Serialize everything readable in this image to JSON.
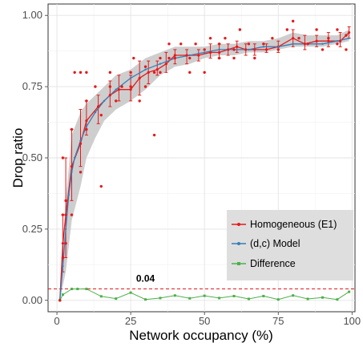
{
  "chart_data": {
    "type": "line",
    "xlabel": "Network occupancy (%)",
    "ylabel": "Drop ratio",
    "xlim": [
      -3,
      101
    ],
    "ylim": [
      -0.04,
      1.04
    ],
    "x_ticks": [
      0,
      25,
      50,
      75,
      100
    ],
    "y_ticks": [
      0.0,
      0.25,
      0.5,
      0.75,
      1.0
    ],
    "x_tick_labels": [
      "0",
      "25",
      "50",
      "75",
      "100"
    ],
    "y_tick_labels": [
      "0.00",
      "0.25",
      "0.50",
      "0.75",
      "1.00"
    ],
    "grid": true,
    "legend_position": "right",
    "colors": {
      "homogeneous": "#e41a1c",
      "model": "#377eb8",
      "difference": "#4daf4a",
      "threshold": "#e41a1c",
      "ribbon": "#bdbdbd"
    },
    "series": [
      {
        "name": "Homogeneous (E1)",
        "x": [
          1,
          2,
          3,
          5,
          8,
          10,
          14,
          18,
          21,
          25,
          28,
          31,
          34,
          37,
          40,
          44,
          48,
          52,
          55,
          58,
          61,
          64,
          67,
          71,
          75,
          80,
          84,
          88,
          92,
          96,
          99
        ],
        "values": [
          0.0,
          0.2,
          0.3,
          0.47,
          0.55,
          0.63,
          0.68,
          0.72,
          0.74,
          0.74,
          0.78,
          0.8,
          0.81,
          0.83,
          0.86,
          0.86,
          0.86,
          0.87,
          0.87,
          0.88,
          0.89,
          0.88,
          0.88,
          0.88,
          0.89,
          0.92,
          0.9,
          0.91,
          0.91,
          0.91,
          0.94
        ],
        "error_low": [
          0.0,
          0.1,
          0.15,
          0.35,
          0.47,
          0.58,
          0.62,
          0.68,
          0.7,
          0.7,
          0.72,
          0.76,
          0.79,
          0.8,
          0.83,
          0.83,
          0.84,
          0.85,
          0.85,
          0.86,
          0.87,
          0.86,
          0.86,
          0.87,
          0.87,
          0.89,
          0.88,
          0.89,
          0.89,
          0.89,
          0.92
        ],
        "error_high": [
          0.0,
          0.3,
          0.5,
          0.6,
          0.67,
          0.7,
          0.72,
          0.77,
          0.79,
          0.79,
          0.84,
          0.84,
          0.84,
          0.87,
          0.88,
          0.88,
          0.88,
          0.9,
          0.9,
          0.9,
          0.91,
          0.9,
          0.9,
          0.9,
          0.91,
          0.95,
          0.93,
          0.93,
          0.94,
          0.94,
          0.96
        ]
      },
      {
        "name": "(d,c) Model",
        "x": [
          1,
          2,
          3,
          4,
          5,
          6,
          8,
          10,
          13,
          16,
          20,
          25,
          30,
          35,
          40,
          45,
          50,
          55,
          60,
          65,
          70,
          75,
          80,
          85,
          90,
          95,
          99
        ],
        "values": [
          0.0,
          0.12,
          0.25,
          0.37,
          0.45,
          0.5,
          0.56,
          0.61,
          0.66,
          0.7,
          0.74,
          0.78,
          0.81,
          0.83,
          0.85,
          0.86,
          0.87,
          0.88,
          0.88,
          0.88,
          0.89,
          0.89,
          0.9,
          0.9,
          0.9,
          0.91,
          0.92
        ]
      },
      {
        "name": "Difference",
        "x": [
          1,
          2,
          5,
          7,
          10,
          15,
          20,
          25,
          30,
          35,
          40,
          45,
          50,
          55,
          60,
          65,
          70,
          75,
          80,
          85,
          90,
          95,
          99
        ],
        "values": [
          0.0,
          0.02,
          0.04,
          0.04,
          0.04,
          0.014,
          0.006,
          0.027,
          0.003,
          0.008,
          0.017,
          0.007,
          0.016,
          0.008,
          0.015,
          0.005,
          0.015,
          0.003,
          0.017,
          0.005,
          0.01,
          0.003,
          0.03
        ]
      }
    ],
    "scatter": [
      [
        1,
        0.0
      ],
      [
        2,
        0.3
      ],
      [
        2,
        0.15
      ],
      [
        2,
        0.5
      ],
      [
        3,
        0.2
      ],
      [
        3,
        0.35
      ],
      [
        5,
        0.6
      ],
      [
        5,
        0.3
      ],
      [
        6,
        0.8
      ],
      [
        8,
        0.8
      ],
      [
        8,
        0.45
      ],
      [
        10,
        0.6
      ],
      [
        10,
        0.8
      ],
      [
        10,
        0.7
      ],
      [
        13,
        0.75
      ],
      [
        15,
        0.4
      ],
      [
        15,
        0.65
      ],
      [
        18,
        0.8
      ],
      [
        18,
        0.75
      ],
      [
        20,
        0.7
      ],
      [
        22,
        0.75
      ],
      [
        25,
        0.8
      ],
      [
        25,
        0.75
      ],
      [
        26,
        0.85
      ],
      [
        28,
        0.7
      ],
      [
        30,
        0.82
      ],
      [
        30,
        0.75
      ],
      [
        33,
        0.8
      ],
      [
        35,
        0.85
      ],
      [
        35,
        0.8
      ],
      [
        38,
        0.9
      ],
      [
        38,
        0.85
      ],
      [
        40,
        0.85
      ],
      [
        42,
        0.9
      ],
      [
        45,
        0.85
      ],
      [
        45,
        0.8
      ],
      [
        47,
        0.9
      ],
      [
        50,
        0.88
      ],
      [
        50,
        0.8
      ],
      [
        52,
        0.92
      ],
      [
        55,
        0.9
      ],
      [
        55,
        0.85
      ],
      [
        57,
        0.92
      ],
      [
        60,
        0.88
      ],
      [
        60,
        0.85
      ],
      [
        62,
        0.95
      ],
      [
        65,
        0.9
      ],
      [
        67,
        0.85
      ],
      [
        70,
        0.9
      ],
      [
        73,
        0.92
      ],
      [
        75,
        0.88
      ],
      [
        78,
        0.95
      ],
      [
        80,
        0.98
      ],
      [
        82,
        0.92
      ],
      [
        85,
        0.9
      ],
      [
        88,
        0.95
      ],
      [
        90,
        0.88
      ],
      [
        92,
        0.92
      ],
      [
        95,
        0.95
      ],
      [
        95,
        0.9
      ],
      [
        98,
        0.93
      ],
      [
        98,
        0.88
      ]
    ],
    "ribbon": {
      "x": [
        1,
        3,
        5,
        8,
        10,
        13,
        16,
        20,
        25,
        30,
        35,
        40,
        45,
        50,
        55,
        60,
        65,
        70,
        75,
        80,
        85,
        90,
        95,
        99
      ],
      "low": [
        0.0,
        0.1,
        0.28,
        0.4,
        0.5,
        0.57,
        0.63,
        0.67,
        0.7,
        0.74,
        0.79,
        0.82,
        0.83,
        0.85,
        0.86,
        0.86,
        0.87,
        0.87,
        0.88,
        0.89,
        0.89,
        0.89,
        0.9,
        0.91
      ],
      "high": [
        0.0,
        0.35,
        0.58,
        0.66,
        0.69,
        0.72,
        0.75,
        0.79,
        0.81,
        0.85,
        0.87,
        0.89,
        0.89,
        0.89,
        0.9,
        0.9,
        0.91,
        0.91,
        0.92,
        0.94,
        0.93,
        0.93,
        0.93,
        0.95
      ]
    },
    "threshold": {
      "value": 0.04,
      "label": "0.04",
      "label_x": 30
    },
    "annotation_dots": [
      [
        33,
        0.58
      ]
    ]
  }
}
